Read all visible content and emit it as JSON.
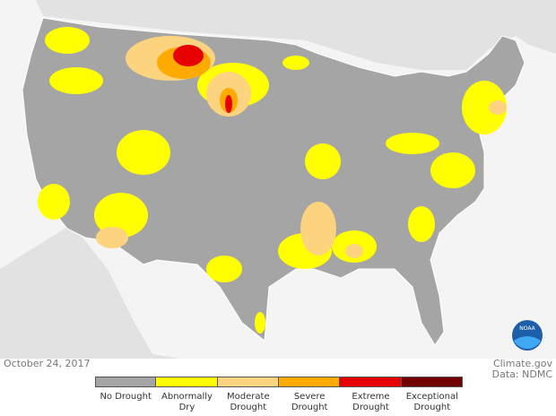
{
  "map": {
    "date": "October 24, 2017",
    "credit": "Climate.gov",
    "source": "Data: NDMC",
    "logo": "NOAA",
    "legend": [
      {
        "label": "No Drought",
        "color": "#a5a5a5"
      },
      {
        "label": "Abnormally Dry",
        "color": "#ffff00"
      },
      {
        "label": "Moderate Drought",
        "color": "#fcd37f"
      },
      {
        "label": "Severe Drought",
        "color": "#ffaa00"
      },
      {
        "label": "Extreme Drought",
        "color": "#e60000"
      },
      {
        "label": "Exceptional Drought",
        "color": "#730000"
      }
    ]
  }
}
